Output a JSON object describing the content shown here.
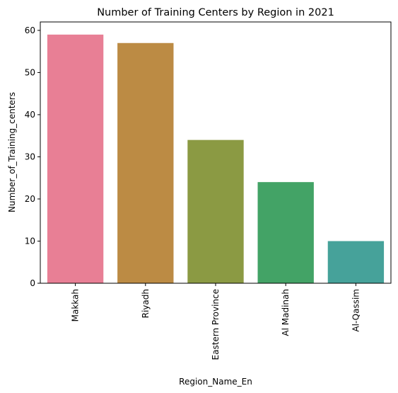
{
  "chart_data": {
    "type": "bar",
    "title": "Number of Training Centers by Region in 2021",
    "xlabel": "Region_Name_En",
    "ylabel": "Number_of_Training_centers",
    "categories": [
      "Makkah",
      "Riyadh",
      "Eastern Province",
      "Al Madinah",
      "Al-Qassim"
    ],
    "values": [
      59,
      57,
      34,
      24,
      10
    ],
    "colors": [
      "#e87f95",
      "#bc8b44",
      "#8b9a43",
      "#43a366",
      "#46a29a"
    ],
    "ylim": [
      0,
      62
    ],
    "yticks": [
      0,
      10,
      20,
      30,
      40,
      50,
      60
    ],
    "grid": false,
    "legend": "none"
  }
}
